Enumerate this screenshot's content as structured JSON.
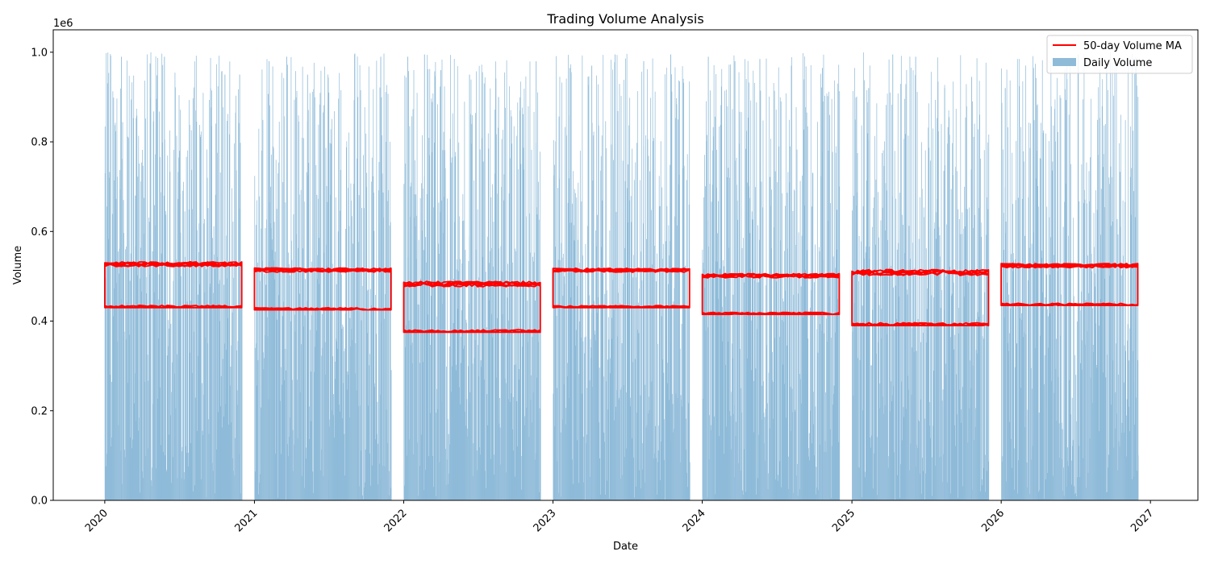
{
  "chart_data": {
    "type": "bar",
    "title": "Trading Volume Analysis",
    "xlabel": "Date",
    "ylabel": "Volume",
    "y_offset_text": "1e6",
    "x_tick_labels": [
      "2020",
      "2021",
      "2022",
      "2023",
      "2024",
      "2025",
      "2026",
      "2027"
    ],
    "y_tick_labels": [
      "0.0",
      "0.2",
      "0.4",
      "0.6",
      "0.8",
      "1.0"
    ],
    "xlim": [
      "2019-08-28",
      "2027-04-27"
    ],
    "ylim": [
      0,
      1050000
    ],
    "grid": false,
    "legend_position": "top-right",
    "series": [
      {
        "name": "Daily Volume",
        "kind": "bar",
        "color": "#8fbbd9",
        "active_periods": [
          [
            "2020-01-01",
            "2020-12-01"
          ],
          [
            "2021-01-01",
            "2021-12-01"
          ],
          [
            "2022-01-01",
            "2022-12-01"
          ],
          [
            "2023-01-01",
            "2023-12-01"
          ],
          [
            "2024-01-01",
            "2024-12-01"
          ],
          [
            "2025-01-01",
            "2025-12-01"
          ],
          [
            "2026-01-01",
            "2026-12-01"
          ]
        ],
        "value_range": [
          0,
          1000000
        ],
        "samples": [
          [
            "2020-01-01",
            730000
          ],
          [
            "2020-02-10",
            990000
          ],
          [
            "2020-03-15",
            680000
          ],
          [
            "2020-04-20",
            975000
          ],
          [
            "2020-05-25",
            990000
          ],
          [
            "2020-07-01",
            780000
          ],
          [
            "2020-08-10",
            870000
          ],
          [
            "2020-09-15",
            920000
          ],
          [
            "2020-10-20",
            950000
          ],
          [
            "2020-11-25",
            950000
          ],
          [
            "2021-02-05",
            980000
          ],
          [
            "2021-03-20",
            990000
          ],
          [
            "2021-05-10",
            950000
          ],
          [
            "2021-07-01",
            910000
          ],
          [
            "2021-09-10",
            900000
          ],
          [
            "2021-11-05",
            990000
          ],
          [
            "2022-01-10",
            990000
          ],
          [
            "2022-02-20",
            995000
          ],
          [
            "2022-04-01",
            960000
          ],
          [
            "2022-06-10",
            950000
          ],
          [
            "2022-08-20",
            900000
          ],
          [
            "2022-11-20",
            980000
          ],
          [
            "2023-02-10",
            965000
          ],
          [
            "2023-04-05",
            970000
          ],
          [
            "2023-06-01",
            995000
          ],
          [
            "2023-08-10",
            980000
          ],
          [
            "2023-10-15",
            995000
          ],
          [
            "2024-01-15",
            990000
          ],
          [
            "2024-03-20",
            980000
          ],
          [
            "2024-05-20",
            985000
          ],
          [
            "2024-08-05",
            970000
          ],
          [
            "2024-10-20",
            965000
          ],
          [
            "2025-02-10",
            920000
          ],
          [
            "2025-04-10",
            995000
          ],
          [
            "2025-06-05",
            990000
          ],
          [
            "2025-08-15",
            920000
          ],
          [
            "2025-10-20",
            945000
          ],
          [
            "2026-01-10",
            920000
          ],
          [
            "2026-03-20",
            965000
          ],
          [
            "2026-06-10",
            940000
          ],
          [
            "2026-09-15",
            980000
          ],
          [
            "2026-11-20",
            690000
          ],
          [
            "2026-12-01",
            100000
          ]
        ]
      },
      {
        "name": "50-day Volume MA",
        "kind": "line",
        "color": "#ff0000",
        "yearly_band": [
          [
            "2020",
            430000,
            610000
          ],
          [
            "2021",
            425000,
            590000
          ],
          [
            "2022",
            375000,
            575000
          ],
          [
            "2023",
            430000,
            585000
          ],
          [
            "2024",
            415000,
            575000
          ],
          [
            "2025",
            390000,
            610000
          ],
          [
            "2026",
            435000,
            600000
          ]
        ],
        "typical_range": [
          380000,
          610000
        ]
      }
    ]
  }
}
